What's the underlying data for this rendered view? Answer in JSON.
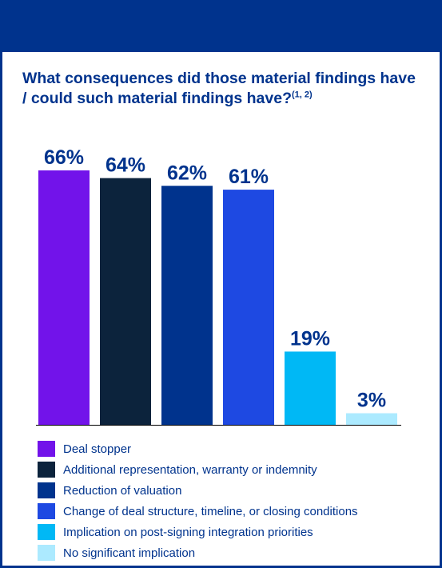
{
  "title": {
    "main": "What consequences did those material findings have / could such material findings have?",
    "superscript": "(1, 2)"
  },
  "chart_data": {
    "type": "bar",
    "categories": [
      "Deal stopper",
      "Additional representation, warranty or indemnity",
      "Reduction of valuation",
      "Change of deal structure, timeline, or closing conditions",
      "Implication on post-signing integration priorities",
      "No significant implication"
    ],
    "values": [
      66,
      64,
      62,
      61,
      19,
      3
    ],
    "value_labels": [
      "66%",
      "64%",
      "62%",
      "61%",
      "19%",
      "3%"
    ],
    "colors": [
      "#7213EA",
      "#0C233C",
      "#00338D",
      "#1E49E2",
      "#00B8F5",
      "#ACEAFF"
    ],
    "unit": "%",
    "ylim": [
      0,
      66
    ],
    "grid": false,
    "legend_position": "bottom-left"
  },
  "legend": {
    "items": [
      {
        "label": "Deal stopper",
        "color": "#7213EA"
      },
      {
        "label": "Additional representation, warranty or indemnity",
        "color": "#0C233C"
      },
      {
        "label": "Reduction of valuation",
        "color": "#00338D"
      },
      {
        "label": "Change of deal structure, timeline, or closing conditions",
        "color": "#1E49E2"
      },
      {
        "label": "Implication on post-signing integration priorities",
        "color": "#00B8F5"
      },
      {
        "label": "No significant implication",
        "color": "#ACEAFF"
      }
    ]
  },
  "theme": {
    "brand": "#00338D",
    "axis": "#000000"
  }
}
